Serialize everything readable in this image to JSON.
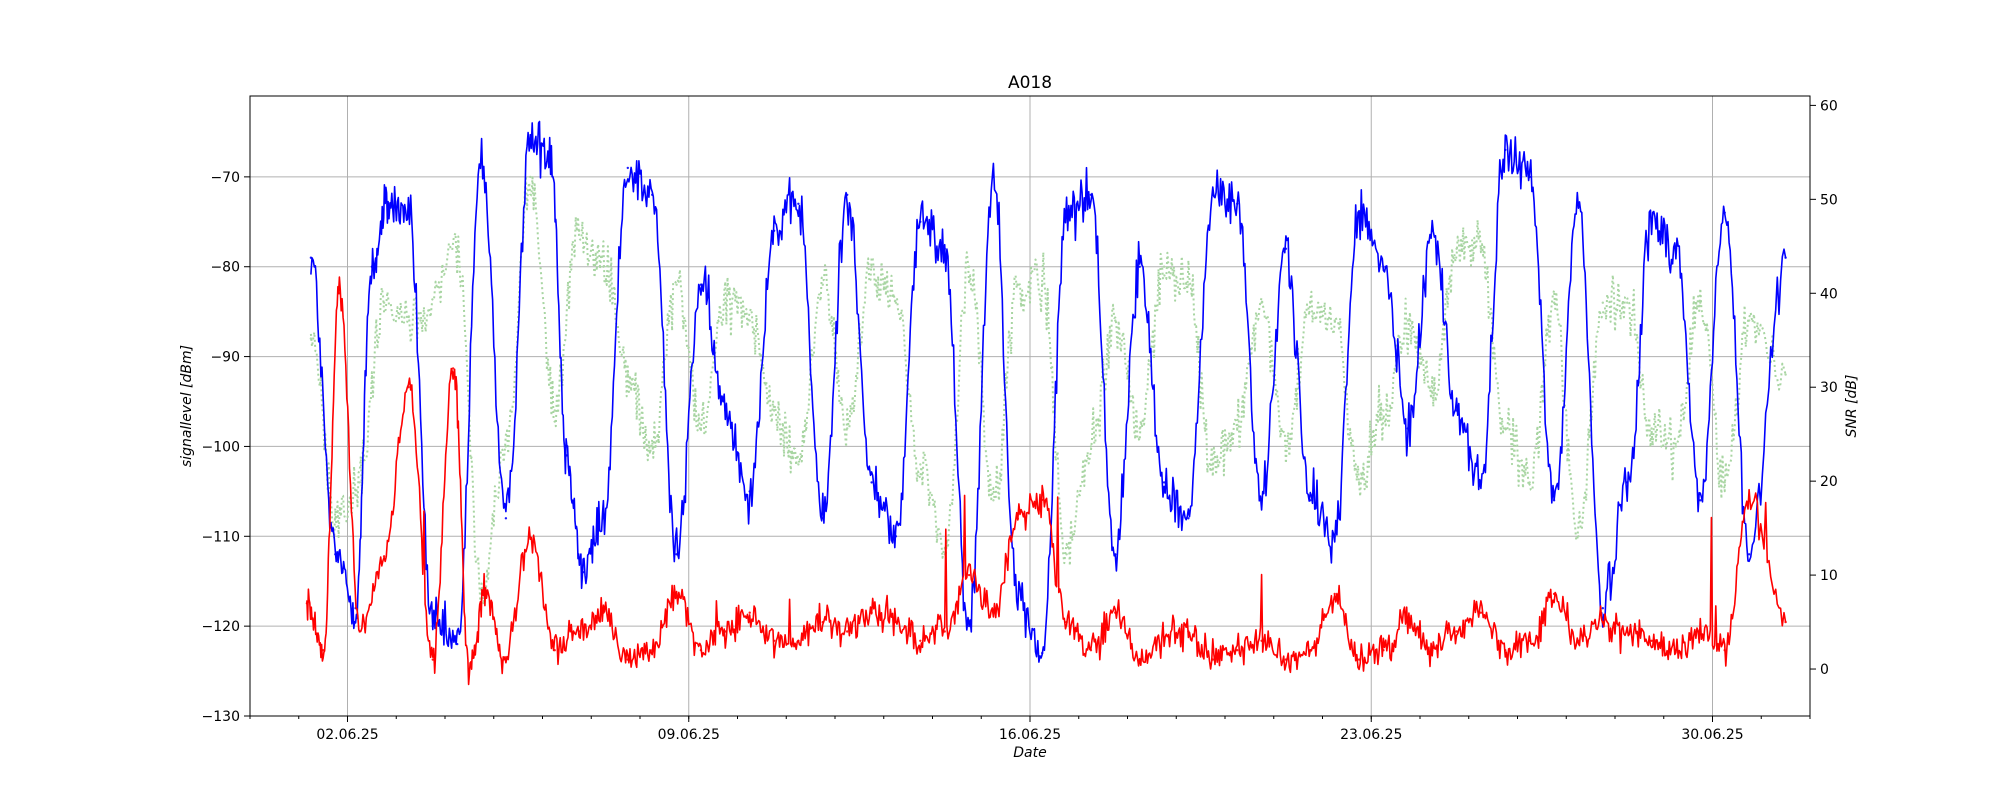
{
  "chart_data": {
    "type": "line",
    "title": "A018",
    "xlabel": "Date",
    "ylabel": "signallevel [dBm]",
    "y2label": "SNR [dB]",
    "x_start": "2025-05-31",
    "x_end": "2025-07-02",
    "x_ticks": [
      "02.06.25",
      "09.06.25",
      "16.06.25",
      "23.06.25",
      "30.06.25"
    ],
    "x_tick_dates": [
      "2025-06-02",
      "2025-06-09",
      "2025-06-16",
      "2025-06-23",
      "2025-06-30"
    ],
    "ylim": [
      -130,
      -61
    ],
    "yticks": [
      -130,
      -120,
      -110,
      -100,
      -90,
      -80,
      -70
    ],
    "y2lim": [
      -5,
      61
    ],
    "y2ticks": [
      0,
      10,
      20,
      30,
      40,
      50,
      60
    ],
    "grid": true,
    "series": [
      {
        "axis": "left",
        "color": "#0000ff",
        "style": "solid",
        "x": [
          "2025-06-01",
          "2025-06-01",
          "2025-06-02",
          "2025-06-02",
          "2025-06-02",
          "2025-06-03",
          "2025-06-03",
          "2025-06-04",
          "2025-06-04",
          "2025-06-05",
          "2025-06-05",
          "2025-06-06",
          "2025-06-06",
          "2025-06-06",
          "2025-06-07",
          "2025-06-07",
          "2025-06-08",
          "2025-06-08",
          "2025-06-09",
          "2025-06-09",
          "2025-06-10",
          "2025-06-10",
          "2025-06-11",
          "2025-06-11",
          "2025-06-12",
          "2025-06-12",
          "2025-06-13",
          "2025-06-13",
          "2025-06-14",
          "2025-06-14",
          "2025-06-15",
          "2025-06-15",
          "2025-06-16",
          "2025-06-16",
          "2025-06-17",
          "2025-06-17",
          "2025-06-18",
          "2025-06-18",
          "2025-06-19",
          "2025-06-19",
          "2025-06-20",
          "2025-06-20",
          "2025-06-21",
          "2025-06-21",
          "2025-06-22",
          "2025-06-22",
          "2025-06-23",
          "2025-06-23",
          "2025-06-24",
          "2025-06-24",
          "2025-06-25",
          "2025-06-25",
          "2025-06-26",
          "2025-06-26",
          "2025-06-27",
          "2025-06-27",
          "2025-06-28",
          "2025-06-28",
          "2025-06-29",
          "2025-06-29",
          "2025-06-30",
          "2025-06-30",
          "2025-07-01"
        ],
        "y": [
          -79,
          -112,
          -73,
          -118,
          -80,
          -120,
          -74,
          -122,
          -68,
          -108,
          -66,
          -114,
          -67,
          -101,
          -69,
          -108,
          -72,
          -112,
          -82,
          -96,
          -76,
          -105,
          -73,
          -108,
          -72,
          -104,
          -75,
          -110,
          -78,
          -120,
          -70,
          -117,
          -74,
          -123,
          -72,
          -112,
          -80,
          -104,
          -72,
          -108,
          -73,
          -106,
          -78,
          -106,
          -74,
          -110,
          -80,
          -98,
          -76,
          -96,
          -67,
          -104,
          -70,
          -106,
          -73,
          -118,
          -75,
          -104,
          -78,
          -106,
          -74,
          -112,
          -79
        ]
      },
      {
        "axis": "left",
        "color": "#a8d5a2",
        "style": "dotted",
        "x": [
          "2025-06-01",
          "2025-06-01",
          "2025-06-02",
          "2025-06-02",
          "2025-06-03",
          "2025-06-04",
          "2025-06-04",
          "2025-06-05",
          "2025-06-05",
          "2025-06-06",
          "2025-06-06",
          "2025-06-07",
          "2025-06-07",
          "2025-06-08",
          "2025-06-08",
          "2025-06-09",
          "2025-06-09",
          "2025-06-10",
          "2025-06-10",
          "2025-06-11",
          "2025-06-11",
          "2025-06-12",
          "2025-06-12",
          "2025-06-13",
          "2025-06-13",
          "2025-06-14",
          "2025-06-14",
          "2025-06-15",
          "2025-06-15",
          "2025-06-16",
          "2025-06-16",
          "2025-06-17",
          "2025-06-17",
          "2025-06-18",
          "2025-06-18",
          "2025-06-19",
          "2025-06-19",
          "2025-06-20",
          "2025-06-20",
          "2025-06-21",
          "2025-06-21",
          "2025-06-22",
          "2025-06-22",
          "2025-06-23",
          "2025-06-23",
          "2025-06-24",
          "2025-06-24",
          "2025-06-25",
          "2025-06-25",
          "2025-06-26",
          "2025-06-26",
          "2025-06-27",
          "2025-06-27",
          "2025-06-28",
          "2025-06-28",
          "2025-06-29",
          "2025-06-29",
          "2025-06-30",
          "2025-06-30",
          "2025-07-01"
        ],
        "y": [
          -88,
          -108,
          -84,
          -104,
          -86,
          -116,
          -78,
          -100,
          -70,
          -96,
          -76,
          -92,
          -80,
          -100,
          -82,
          -98,
          -84,
          -96,
          -86,
          -102,
          -82,
          -98,
          -80,
          -102,
          -84,
          -112,
          -80,
          -106,
          -82,
          -112,
          -82,
          -100,
          -86,
          -98,
          -80,
          -102,
          -82,
          -98,
          -84,
          -100,
          -84,
          -104,
          -86,
          -96,
          -86,
          -94,
          -78,
          -98,
          -78,
          -104,
          -84,
          -110,
          -84,
          -98,
          -84,
          -100,
          -84,
          -104,
          -86,
          -92
        ]
      },
      {
        "axis": "right",
        "color": "#ff0000",
        "style": "solid",
        "x": [
          "2025-06-01",
          "2025-06-01",
          "2025-06-01",
          "2025-06-02",
          "2025-06-02",
          "2025-06-03",
          "2025-06-03",
          "2025-06-04",
          "2025-06-04",
          "2025-06-04",
          "2025-06-05",
          "2025-06-05",
          "2025-06-06",
          "2025-06-06",
          "2025-06-07",
          "2025-06-07",
          "2025-06-08",
          "2025-06-08",
          "2025-06-09",
          "2025-06-09",
          "2025-06-10",
          "2025-06-10",
          "2025-06-11",
          "2025-06-11",
          "2025-06-12",
          "2025-06-12",
          "2025-06-13",
          "2025-06-13",
          "2025-06-14",
          "2025-06-14",
          "2025-06-15",
          "2025-06-15",
          "2025-06-16",
          "2025-06-16",
          "2025-06-17",
          "2025-06-17",
          "2025-06-18",
          "2025-06-18",
          "2025-06-19",
          "2025-06-19",
          "2025-06-20",
          "2025-06-20",
          "2025-06-21",
          "2025-06-21",
          "2025-06-22",
          "2025-06-22",
          "2025-06-23",
          "2025-06-23",
          "2025-06-24",
          "2025-06-24",
          "2025-06-25",
          "2025-06-25",
          "2025-06-26",
          "2025-06-26",
          "2025-06-27",
          "2025-06-27",
          "2025-06-28",
          "2025-06-28",
          "2025-06-29",
          "2025-06-29",
          "2025-06-30",
          "2025-06-30",
          "2025-07-01"
        ],
        "y": [
          7,
          2,
          40,
          4,
          12,
          1,
          30,
          0,
          8,
          32,
          1,
          14,
          2,
          4,
          1,
          6,
          2,
          8,
          2,
          4,
          3,
          6,
          3,
          5,
          4,
          6,
          3,
          5,
          4,
          10,
          6,
          16,
          5,
          18,
          2,
          6,
          1,
          3,
          1,
          4,
          2,
          3,
          1,
          2,
          1,
          8,
          2,
          5,
          2,
          4,
          2,
          6,
          3,
          8,
          3,
          5,
          3,
          4,
          2,
          4,
          2,
          18,
          5
        ]
      }
    ]
  }
}
